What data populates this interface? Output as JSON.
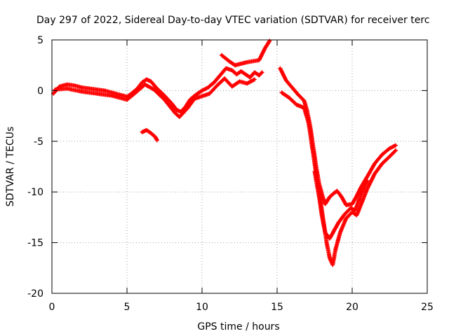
{
  "chart_data": {
    "type": "scatter",
    "title": "Day 297 of 2022, Sidereal Day-to-day VTEC variation (SDTVAR) for receiver terc",
    "xlabel": "GPS time / hours",
    "ylabel": "SDTVAR / TECUs",
    "xlim": [
      0,
      25
    ],
    "ylim": [
      -20,
      5
    ],
    "xticks": [
      0,
      5,
      10,
      15,
      20,
      25
    ],
    "yticks": [
      5,
      0,
      -5,
      -10,
      -15,
      -20
    ],
    "xtick_labels": [
      "0",
      "5",
      "10",
      "15",
      "20",
      "25"
    ],
    "ytick_labels": [
      "5",
      "0",
      "-5",
      "-10",
      "-15",
      "-20"
    ],
    "grid": true,
    "marker": "plus",
    "color": "#ff0000",
    "series": [
      {
        "name": "main-trace",
        "points": [
          [
            0.1,
            -0.3
          ],
          [
            0.5,
            0.4
          ],
          [
            1.0,
            0.6
          ],
          [
            1.5,
            0.5
          ],
          [
            2.0,
            0.3
          ],
          [
            2.5,
            0.2
          ],
          [
            3.0,
            0.1
          ],
          [
            3.5,
            0.0
          ],
          [
            4.0,
            -0.2
          ],
          [
            4.5,
            -0.4
          ],
          [
            5.0,
            -0.6
          ],
          [
            5.3,
            -0.3
          ],
          [
            5.7,
            0.2
          ],
          [
            6.0,
            0.8
          ],
          [
            6.3,
            1.1
          ],
          [
            6.6,
            0.9
          ],
          [
            7.0,
            0.2
          ],
          [
            7.5,
            -0.5
          ],
          [
            8.0,
            -1.3
          ],
          [
            8.3,
            -1.9
          ],
          [
            8.6,
            -2.1
          ],
          [
            8.9,
            -1.6
          ],
          [
            9.2,
            -0.9
          ],
          [
            9.6,
            -0.4
          ],
          [
            10.0,
            0.0
          ],
          [
            10.4,
            0.3
          ],
          [
            10.8,
            0.8
          ],
          [
            11.2,
            1.5
          ],
          [
            11.6,
            2.2
          ],
          [
            12.0,
            2.0
          ],
          [
            12.3,
            1.6
          ],
          [
            12.6,
            1.9
          ],
          [
            12.9,
            1.6
          ],
          [
            13.2,
            1.3
          ],
          [
            13.5,
            1.8
          ],
          [
            13.8,
            1.5
          ],
          [
            14.0,
            1.8
          ]
        ]
      },
      {
        "name": "main-trace-offset",
        "points": [
          [
            0.2,
            0.1
          ],
          [
            1.0,
            0.2
          ],
          [
            2.0,
            -0.1
          ],
          [
            3.0,
            -0.3
          ],
          [
            4.0,
            -0.5
          ],
          [
            5.0,
            -0.9
          ],
          [
            5.5,
            -0.3
          ],
          [
            6.2,
            0.6
          ],
          [
            6.8,
            0.1
          ],
          [
            7.5,
            -0.9
          ],
          [
            8.2,
            -2.2
          ],
          [
            8.5,
            -2.6
          ],
          [
            9.0,
            -1.8
          ],
          [
            9.5,
            -0.8
          ],
          [
            10.5,
            -0.3
          ],
          [
            11.0,
            0.5
          ],
          [
            11.5,
            1.2
          ],
          [
            12.0,
            0.4
          ],
          [
            12.5,
            0.9
          ],
          [
            13.0,
            0.7
          ],
          [
            13.5,
            1.1
          ]
        ]
      },
      {
        "name": "small-segment",
        "points": [
          [
            6.0,
            -4.1
          ],
          [
            6.3,
            -3.9
          ],
          [
            6.6,
            -4.2
          ],
          [
            6.9,
            -4.6
          ],
          [
            7.0,
            -4.9
          ]
        ]
      },
      {
        "name": "peak-segment",
        "points": [
          [
            11.3,
            3.5
          ],
          [
            11.8,
            2.9
          ],
          [
            12.2,
            2.5
          ],
          [
            13.0,
            2.8
          ],
          [
            13.8,
            3.0
          ],
          [
            14.2,
            4.2
          ],
          [
            14.5,
            4.9
          ]
        ]
      },
      {
        "name": "decline-trace-a",
        "points": [
          [
            15.2,
            2.2
          ],
          [
            15.6,
            1.0
          ],
          [
            16.0,
            0.3
          ],
          [
            16.4,
            -0.4
          ],
          [
            16.8,
            -1.0
          ],
          [
            17.0,
            -2.0
          ],
          [
            17.2,
            -3.5
          ],
          [
            17.4,
            -5.5
          ],
          [
            17.6,
            -7.5
          ],
          [
            17.8,
            -9.2
          ],
          [
            18.0,
            -10.3
          ],
          [
            18.2,
            -11.2
          ],
          [
            18.5,
            -10.5
          ],
          [
            18.8,
            -10.1
          ],
          [
            19.0,
            -9.9
          ],
          [
            19.3,
            -10.5
          ],
          [
            19.6,
            -11.3
          ],
          [
            20.0,
            -11.2
          ],
          [
            20.3,
            -10.4
          ],
          [
            20.6,
            -9.5
          ],
          [
            21.0,
            -8.5
          ],
          [
            21.5,
            -7.2
          ],
          [
            22.0,
            -6.3
          ],
          [
            22.5,
            -5.7
          ],
          [
            22.9,
            -5.4
          ]
        ]
      },
      {
        "name": "decline-trace-b",
        "points": [
          [
            15.3,
            -0.2
          ],
          [
            15.8,
            -0.7
          ],
          [
            16.3,
            -1.4
          ],
          [
            16.8,
            -1.7
          ],
          [
            17.1,
            -3.2
          ],
          [
            17.3,
            -5.2
          ],
          [
            17.5,
            -7.2
          ],
          [
            17.7,
            -9.2
          ],
          [
            17.9,
            -11.0
          ],
          [
            18.1,
            -13.0
          ],
          [
            18.3,
            -15.0
          ],
          [
            18.5,
            -16.5
          ],
          [
            18.7,
            -17.2
          ],
          [
            18.9,
            -15.6
          ],
          [
            19.2,
            -14.0
          ],
          [
            19.6,
            -12.6
          ],
          [
            20.0,
            -12.0
          ],
          [
            20.3,
            -12.3
          ],
          [
            20.6,
            -11.2
          ],
          [
            21.0,
            -9.7
          ],
          [
            21.5,
            -8.2
          ],
          [
            22.0,
            -7.2
          ],
          [
            22.5,
            -6.5
          ],
          [
            22.9,
            -5.9
          ]
        ]
      },
      {
        "name": "decline-trace-c",
        "points": [
          [
            17.5,
            -8.0
          ],
          [
            17.8,
            -10.5
          ],
          [
            18.0,
            -12.5
          ],
          [
            18.2,
            -14.0
          ],
          [
            18.5,
            -14.6
          ],
          [
            18.8,
            -13.8
          ],
          [
            19.1,
            -13.0
          ],
          [
            19.5,
            -12.2
          ],
          [
            19.9,
            -11.6
          ],
          [
            20.2,
            -11.8
          ],
          [
            20.6,
            -10.2
          ],
          [
            21.0,
            -8.9
          ]
        ]
      }
    ]
  }
}
